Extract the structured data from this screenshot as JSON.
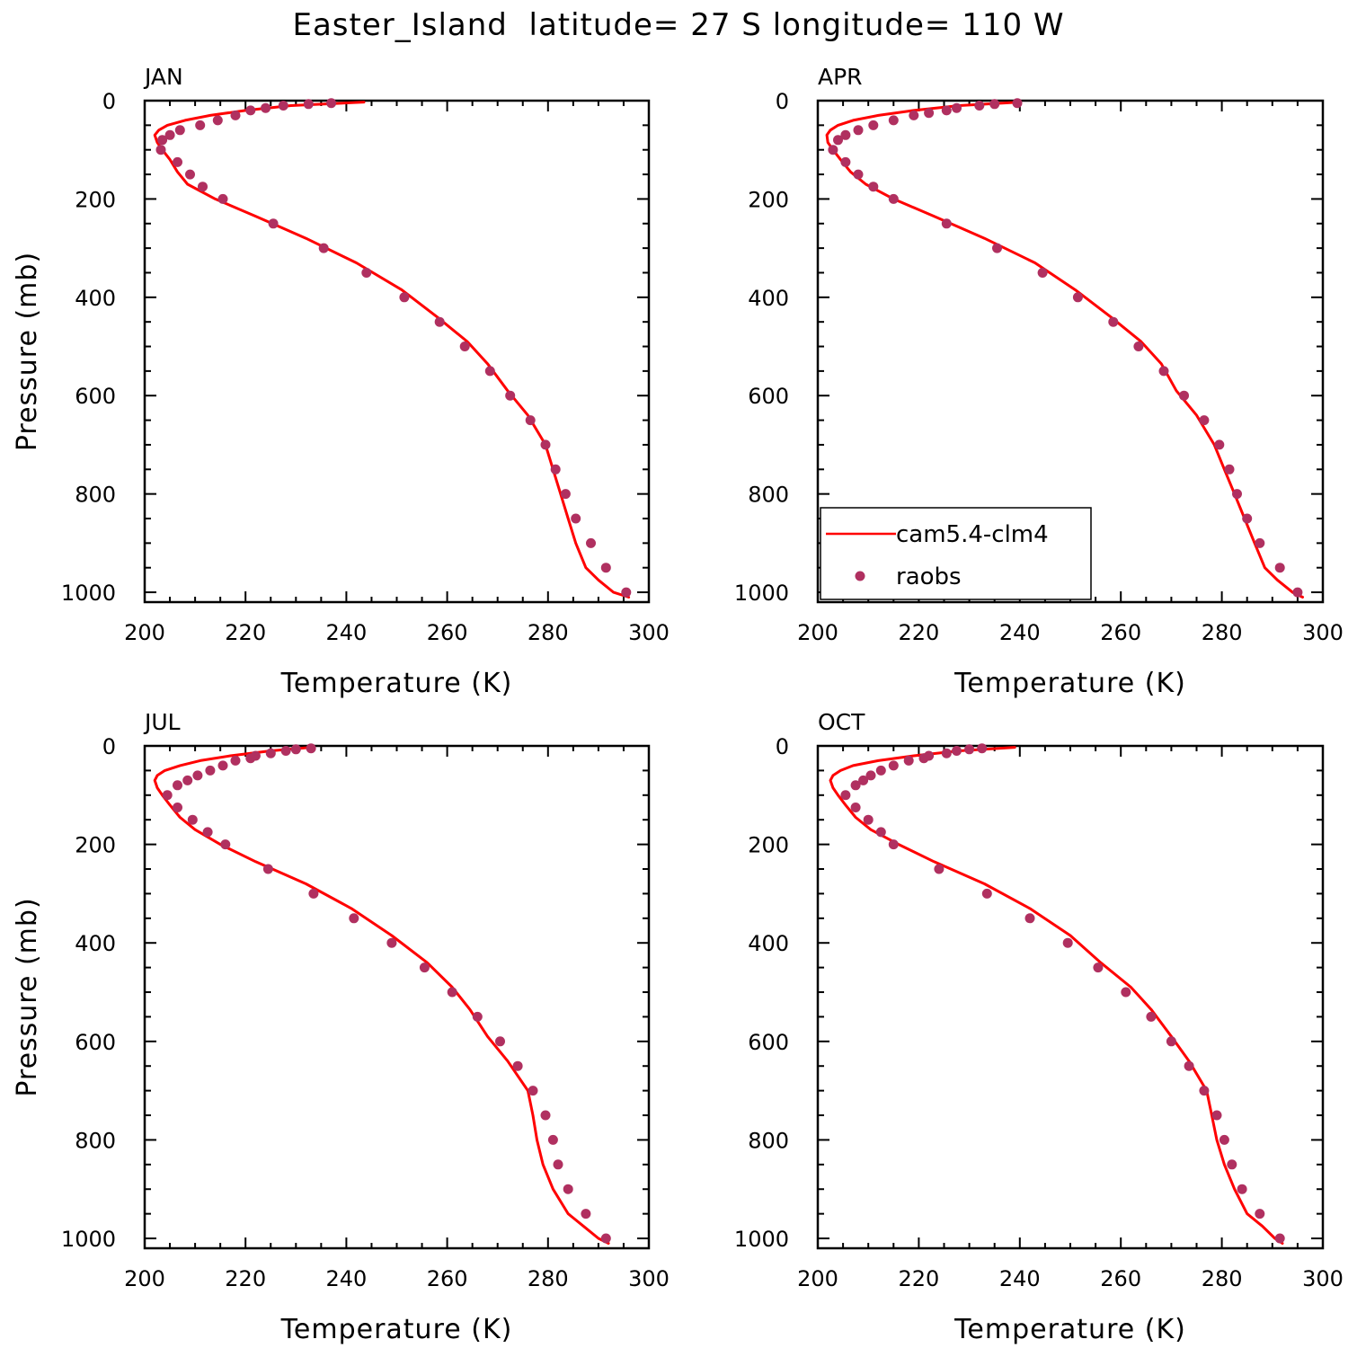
{
  "figure": {
    "title": "Easter_Island  latitude= 27 S longitude= 110 W"
  },
  "colors": {
    "model": "#ff0000",
    "obs": "#b03060",
    "axis": "#000000"
  },
  "legend": {
    "placement": "lower-left of APR panel",
    "items": [
      {
        "label": "cam5.4-clm4",
        "style": "line"
      },
      {
        "label": "raobs",
        "style": "marker"
      }
    ]
  },
  "chart_data": [
    {
      "type": "line",
      "panel_label": "JAN",
      "xlabel": "Temperature (K)",
      "ylabel": "Pressure (mb)",
      "xlim": [
        200,
        300
      ],
      "ylim": [
        1020,
        0
      ],
      "xticks": [
        200,
        220,
        240,
        260,
        280,
        300
      ],
      "yticks": [
        0,
        200,
        400,
        600,
        800,
        1000
      ],
      "grid": false,
      "series": [
        {
          "name": "cam5.4-clm4",
          "kind": "line",
          "x": [
            243.5,
            229,
            220,
            213,
            208,
            204.5,
            202.8,
            202,
            202.5,
            203.5,
            205,
            206.5,
            208.5,
            214,
            222,
            232,
            242,
            251,
            258,
            264,
            268,
            272,
            276,
            279.5,
            281,
            282.5,
            284,
            285.5,
            287.5,
            290,
            293,
            296
          ],
          "y": [
            3,
            10,
            20,
            30,
            40,
            50,
            60,
            70,
            85,
            100,
            120,
            145,
            170,
            200,
            235,
            280,
            330,
            385,
            440,
            490,
            535,
            590,
            640,
            700,
            750,
            800,
            850,
            900,
            950,
            975,
            1000,
            1010
          ]
        },
        {
          "name": "raobs",
          "kind": "scatter",
          "x": [
            237,
            232.5,
            227.5,
            224,
            221,
            218,
            214.5,
            211,
            207,
            205,
            203.5,
            203.2,
            206.5,
            209,
            211.5,
            215.5,
            225.5,
            235.5,
            244,
            251.5,
            258.5,
            263.5,
            268.5,
            272.5,
            276.5,
            279.5,
            281.5,
            283.5,
            285.5,
            288.5,
            291.5,
            295.5
          ],
          "y": [
            5,
            7,
            10,
            15,
            20,
            30,
            40,
            50,
            60,
            70,
            80,
            100,
            125,
            150,
            175,
            200,
            250,
            300,
            350,
            400,
            450,
            500,
            550,
            600,
            650,
            700,
            750,
            800,
            850,
            900,
            950,
            1000
          ]
        }
      ]
    },
    {
      "type": "line",
      "panel_label": "APR",
      "xlabel": "Temperature (K)",
      "ylabel": "",
      "xlim": [
        200,
        300
      ],
      "ylim": [
        1020,
        0
      ],
      "xticks": [
        200,
        220,
        240,
        260,
        280,
        300
      ],
      "yticks": [
        0,
        200,
        400,
        600,
        800,
        1000
      ],
      "grid": false,
      "series": [
        {
          "name": "cam5.4-clm4",
          "kind": "line",
          "x": [
            240,
            228,
            219,
            212,
            207,
            204,
            202.5,
            201.8,
            202,
            203,
            204.5,
            206.5,
            209.5,
            215,
            223,
            233,
            243,
            251,
            258,
            264,
            268,
            271,
            275,
            278.5,
            280.5,
            282.5,
            284.5,
            286.5,
            288.5,
            291,
            294,
            296
          ],
          "y": [
            3,
            10,
            20,
            30,
            40,
            50,
            60,
            70,
            85,
            100,
            120,
            145,
            170,
            200,
            235,
            280,
            330,
            385,
            440,
            490,
            535,
            590,
            640,
            700,
            750,
            800,
            850,
            900,
            950,
            975,
            1000,
            1010
          ]
        },
        {
          "name": "raobs",
          "kind": "scatter",
          "x": [
            239.5,
            235,
            232,
            227.5,
            225.5,
            222,
            219,
            215,
            211,
            208,
            205.5,
            204,
            203,
            205.5,
            208,
            211,
            215,
            225.5,
            235.5,
            244.5,
            251.5,
            258.5,
            263.5,
            268.5,
            272.5,
            276.5,
            279.5,
            281.5,
            283,
            285,
            287.5,
            291.5,
            295
          ],
          "y": [
            5,
            7,
            10,
            15,
            20,
            25,
            30,
            40,
            50,
            60,
            70,
            80,
            100,
            125,
            150,
            175,
            200,
            250,
            300,
            350,
            400,
            450,
            500,
            550,
            600,
            650,
            700,
            750,
            800,
            850,
            900,
            950,
            1000
          ]
        }
      ]
    },
    {
      "type": "line",
      "panel_label": "JUL",
      "xlabel": "Temperature (K)",
      "ylabel": "Pressure (mb)",
      "xlim": [
        200,
        300
      ],
      "ylim": [
        1020,
        0
      ],
      "xticks": [
        200,
        220,
        240,
        260,
        280,
        300
      ],
      "yticks": [
        0,
        200,
        400,
        600,
        800,
        1000
      ],
      "grid": false,
      "series": [
        {
          "name": "cam5.4-clm4",
          "kind": "line",
          "x": [
            233,
            225,
            217,
            211,
            207,
            204,
            202.5,
            202,
            202.5,
            203.5,
            205,
            207,
            210,
            215,
            222,
            232,
            241,
            249,
            256,
            261,
            264.5,
            268,
            272,
            276,
            277,
            277.8,
            279,
            281,
            284,
            287,
            290,
            292
          ],
          "y": [
            3,
            10,
            20,
            30,
            40,
            50,
            60,
            70,
            85,
            100,
            120,
            145,
            170,
            200,
            235,
            280,
            330,
            385,
            440,
            490,
            535,
            590,
            640,
            700,
            750,
            800,
            850,
            900,
            950,
            975,
            1000,
            1010
          ]
        },
        {
          "name": "raobs",
          "kind": "scatter",
          "x": [
            233,
            230,
            228,
            225,
            222,
            221,
            218,
            215.5,
            213,
            210.5,
            208.5,
            206.5,
            204.5,
            206.5,
            209.5,
            212.5,
            216,
            224.5,
            233.5,
            241.5,
            249,
            255.5,
            261,
            266,
            270.5,
            274,
            277,
            279.5,
            281,
            282,
            284,
            287.5,
            291.5
          ],
          "y": [
            5,
            7,
            10,
            15,
            20,
            25,
            30,
            40,
            50,
            60,
            70,
            80,
            100,
            125,
            150,
            175,
            200,
            250,
            300,
            350,
            400,
            450,
            500,
            550,
            600,
            650,
            700,
            750,
            800,
            850,
            900,
            950,
            1000
          ]
        }
      ]
    },
    {
      "type": "line",
      "panel_label": "OCT",
      "xlabel": "Temperature (K)",
      "ylabel": "",
      "xlim": [
        200,
        300
      ],
      "ylim": [
        1020,
        0
      ],
      "xticks": [
        200,
        220,
        240,
        260,
        280,
        300
      ],
      "yticks": [
        0,
        200,
        400,
        600,
        800,
        1000
      ],
      "grid": false,
      "series": [
        {
          "name": "cam5.4-clm4",
          "kind": "line",
          "x": [
            239,
            228,
            219,
            212,
            207,
            204.5,
            203,
            202.5,
            203,
            204,
            205.5,
            207.5,
            210.5,
            216,
            223,
            233,
            242,
            250,
            256,
            262,
            266,
            270,
            273.5,
            277,
            278,
            279,
            280.5,
            282.5,
            285,
            288,
            290.5,
            292
          ],
          "y": [
            3,
            10,
            20,
            30,
            40,
            50,
            60,
            70,
            85,
            100,
            120,
            145,
            170,
            200,
            235,
            280,
            330,
            385,
            440,
            490,
            535,
            590,
            640,
            700,
            750,
            800,
            850,
            900,
            950,
            975,
            1000,
            1010
          ]
        },
        {
          "name": "raobs",
          "kind": "scatter",
          "x": [
            232.5,
            230,
            227.5,
            225.5,
            222,
            221,
            218,
            215,
            212.5,
            210.5,
            209,
            207.5,
            205.5,
            207.5,
            210,
            212.5,
            215,
            224,
            233.5,
            242,
            249.5,
            255.5,
            261,
            266,
            270,
            273.5,
            276.5,
            279,
            280.5,
            282,
            284,
            287.5,
            291.5
          ],
          "y": [
            5,
            7,
            10,
            15,
            20,
            25,
            30,
            40,
            50,
            60,
            70,
            80,
            100,
            125,
            150,
            175,
            200,
            250,
            300,
            350,
            400,
            450,
            500,
            550,
            600,
            650,
            700,
            750,
            800,
            850,
            900,
            950,
            1000
          ]
        }
      ]
    }
  ]
}
